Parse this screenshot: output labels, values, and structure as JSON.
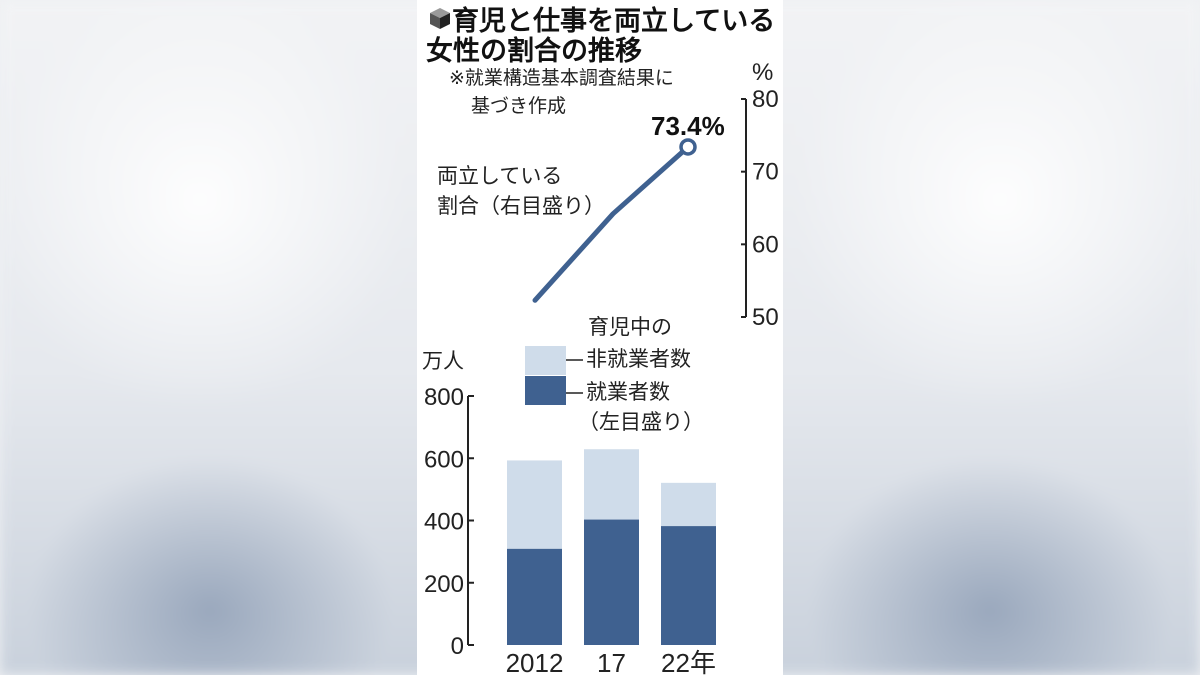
{
  "title_line1": "育児と仕事を両立している",
  "title_line2": "女性の割合の推移",
  "note_line1": "※就業構造基本調査結果に",
  "note_line2": "基づき作成",
  "colors": {
    "employed": "#3f6190",
    "not_employed": "#cfdcea",
    "line": "#3f6190",
    "axis": "#222222"
  },
  "chart_data": [
    {
      "type": "line",
      "series_label_line1": "両立している",
      "series_label_line2": "割合（右目盛り）",
      "unit": "%",
      "ylim": [
        50,
        80
      ],
      "yticks": [
        "50",
        "60",
        "70",
        "80"
      ],
      "x": [
        "2012",
        "17",
        "22年"
      ],
      "values": [
        52.3,
        64.2,
        73.4
      ],
      "value_label": "73.4%"
    },
    {
      "type": "bar",
      "stacked": true,
      "unit": "万人",
      "ylim": [
        0,
        800
      ],
      "yticks": [
        "0",
        "200",
        "400",
        "600",
        "800"
      ],
      "categories": [
        "2012",
        "17",
        "22年"
      ],
      "series": [
        {
          "name": "就業者数",
          "values": [
            309,
            403,
            382
          ]
        },
        {
          "name": "育児中の非就業者数",
          "values": [
            284,
            226,
            139
          ]
        }
      ],
      "legend": {
        "not_employed_line1": "育児中の",
        "not_employed_line2": "非就業者数",
        "employed": "就業者数",
        "scale_note": "（左目盛り）"
      }
    }
  ]
}
